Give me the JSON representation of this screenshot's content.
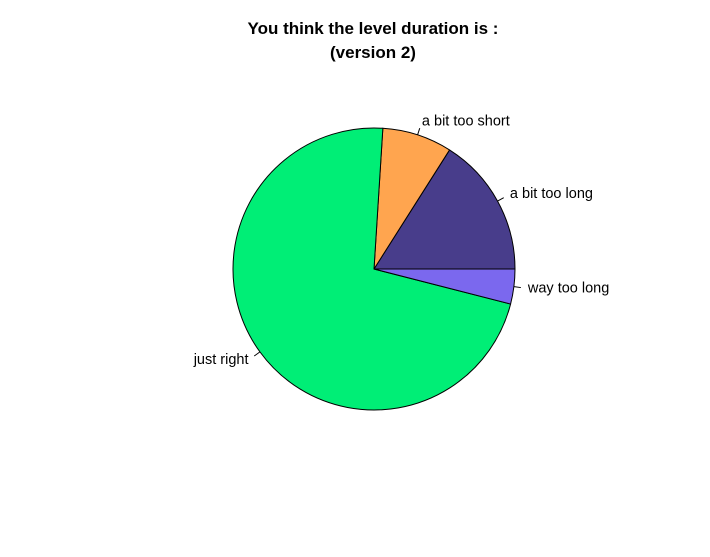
{
  "chart_data": {
    "type": "pie",
    "title": "You think the level duration is :",
    "subtitle": "(version 2)",
    "start_angle_deg": 0,
    "direction": "counterclockwise",
    "slices": [
      {
        "label": "a bit too long",
        "value": 16,
        "color": "#483D8B"
      },
      {
        "label": "a bit too short",
        "value": 8,
        "color": "#FFA54F"
      },
      {
        "label": "just right",
        "value": 72,
        "color": "#00EE76"
      },
      {
        "label": "way too long",
        "value": 4,
        "color": "#7B68EE"
      }
    ]
  }
}
